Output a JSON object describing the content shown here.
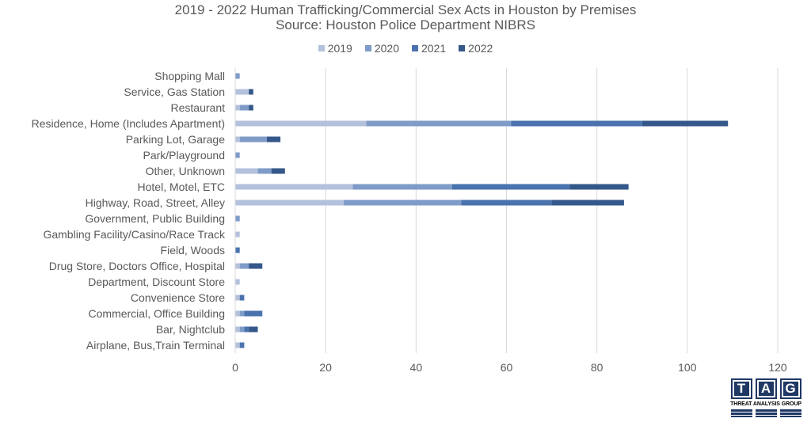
{
  "chart_data": {
    "type": "bar",
    "orientation": "horizontal",
    "stacked": true,
    "title": "2019 - 2022 Human Trafficking/Commercial Sex Acts in Houston by Premises",
    "subtitle": "Source:  Houston Police Department NIBRS",
    "categories": [
      "Shopping Mall",
      "Service, Gas Station",
      "Restaurant",
      "Residence, Home (Includes Apartment)",
      "Parking Lot, Garage",
      "Park/Playground",
      "Other, Unknown",
      "Hotel, Motel, ETC",
      "Highway, Road, Street, Alley",
      "Government, Public Building",
      "Gambling Facility/Casino/Race Track",
      "Field, Woods",
      "Drug Store, Doctors Office, Hospital",
      "Department, Discount Store",
      "Convenience Store",
      "Commercial, Office Building",
      "Bar, Nightclub",
      "Airplane, Bus,Train Terminal"
    ],
    "series": [
      {
        "name": "2019",
        "color": "#b4c1dc",
        "values": [
          0,
          3,
          1,
          29,
          1,
          0,
          5,
          26,
          24,
          0,
          1,
          0,
          1,
          1,
          1,
          1,
          1,
          1
        ]
      },
      {
        "name": "2020",
        "color": "#7f9bc8",
        "values": [
          1,
          0,
          2,
          32,
          6,
          1,
          3,
          22,
          26,
          1,
          0,
          0,
          2,
          0,
          0,
          1,
          1,
          0
        ]
      },
      {
        "name": "2021",
        "color": "#4a73ae",
        "values": [
          0,
          0,
          0,
          29,
          0,
          0,
          0,
          26,
          20,
          0,
          0,
          1,
          0,
          0,
          1,
          4,
          1,
          1
        ]
      },
      {
        "name": "2022",
        "color": "#35588a",
        "values": [
          0,
          1,
          1,
          19,
          3,
          0,
          3,
          13,
          16,
          0,
          0,
          0,
          3,
          0,
          0,
          0,
          2,
          0
        ]
      }
    ],
    "xlim": [
      0,
      120
    ],
    "xticks": [
      0,
      20,
      40,
      60,
      80,
      100,
      120
    ],
    "grid": "vertical",
    "legend": "top-center"
  },
  "logo": {
    "letters": [
      "T",
      "A",
      "G"
    ],
    "name": "THREAT ANALYSIS GROUP"
  }
}
